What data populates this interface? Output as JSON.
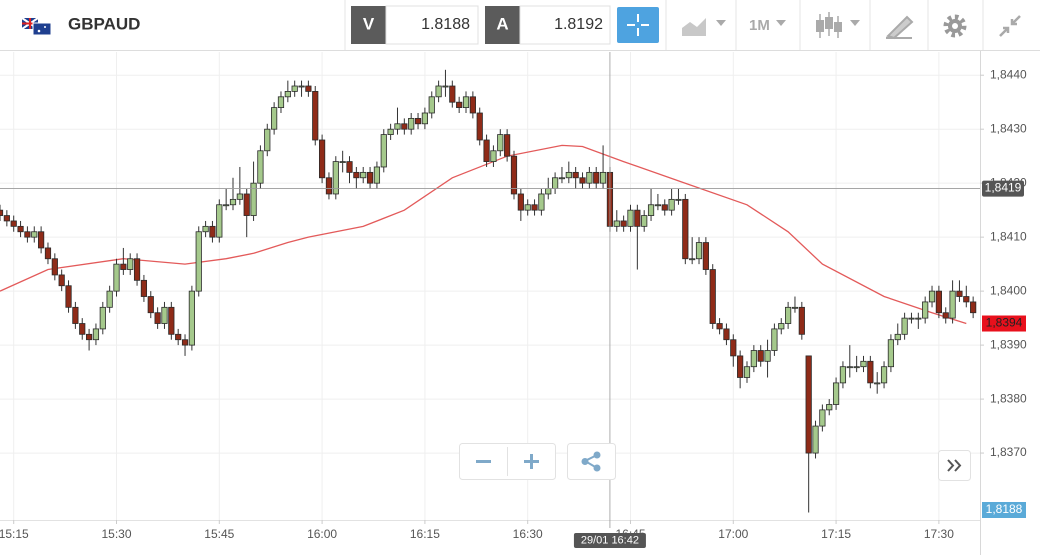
{
  "header": {
    "symbol": "GBPAUD",
    "bid_button": "V",
    "bid": "1.8188",
    "ask_button": "A",
    "ask": "1.8192",
    "timeframe": "1M"
  },
  "chart_data": {
    "type": "candlestick",
    "x": [
      "15:13",
      "15:14",
      "15:15",
      "15:16",
      "15:17",
      "15:18",
      "15:19",
      "15:20",
      "15:21",
      "15:22",
      "15:23",
      "15:24",
      "15:25",
      "15:26",
      "15:27",
      "15:28",
      "15:29",
      "15:30",
      "15:31",
      "15:32",
      "15:33",
      "15:34",
      "15:35",
      "15:36",
      "15:37",
      "15:38",
      "15:39",
      "15:40",
      "15:41",
      "15:42",
      "15:43",
      "15:44",
      "15:45",
      "15:46",
      "15:47",
      "15:48",
      "15:49",
      "15:50",
      "15:51",
      "15:52",
      "15:53",
      "15:54",
      "15:55",
      "15:56",
      "15:57",
      "15:58",
      "15:59",
      "16:00",
      "16:01",
      "16:02",
      "16:03",
      "16:04",
      "16:05",
      "16:06",
      "16:07",
      "16:08",
      "16:09",
      "16:10",
      "16:11",
      "16:12",
      "16:13",
      "16:14",
      "16:15",
      "16:16",
      "16:17",
      "16:18",
      "16:19",
      "16:20",
      "16:21",
      "16:22",
      "16:23",
      "16:24",
      "16:25",
      "16:26",
      "16:27",
      "16:28",
      "16:29",
      "16:30",
      "16:31",
      "16:32",
      "16:33",
      "16:34",
      "16:35",
      "16:36",
      "16:37",
      "16:38",
      "16:39",
      "16:40",
      "16:41",
      "16:42",
      "16:43",
      "16:44",
      "16:45",
      "16:46",
      "16:47",
      "16:48",
      "16:49",
      "16:50",
      "16:51",
      "16:52",
      "16:53",
      "16:54",
      "16:55",
      "16:56",
      "16:57",
      "16:58",
      "16:59",
      "17:00",
      "17:01",
      "17:02",
      "17:03",
      "17:04",
      "17:05",
      "17:06",
      "17:07",
      "17:08",
      "17:09",
      "17:10",
      "17:11",
      "17:12",
      "17:13",
      "17:14",
      "17:15",
      "17:16",
      "17:17",
      "17:18",
      "17:19",
      "17:20",
      "17:21",
      "17:22",
      "17:23",
      "17:24",
      "17:25",
      "17:26",
      "17:27",
      "17:28",
      "17:29",
      "17:30",
      "17:31",
      "17:32",
      "17:33",
      "17:34",
      "17:35"
    ],
    "open": [
      1.8415,
      1.8414,
      1.8413,
      1.8412,
      1.8411,
      1.841,
      1.8411,
      1.8408,
      1.8406,
      1.8403,
      1.8401,
      1.8397,
      1.8394,
      1.8392,
      1.8391,
      1.8393,
      1.8397,
      1.84,
      1.8405,
      1.8404,
      1.8406,
      1.8402,
      1.8399,
      1.8396,
      1.8394,
      1.8397,
      1.8392,
      1.8391,
      1.839,
      1.84,
      1.8411,
      1.8412,
      1.841,
      1.8416,
      1.8416,
      1.8417,
      1.8418,
      1.8414,
      1.842,
      1.8426,
      1.843,
      1.8434,
      1.8436,
      1.8437,
      1.8438,
      1.8438,
      1.8437,
      1.8428,
      1.8421,
      1.8418,
      1.8424,
      1.8424,
      1.8422,
      1.8421,
      1.8422,
      1.842,
      1.8423,
      1.8429,
      1.843,
      1.8431,
      1.843,
      1.8432,
      1.8431,
      1.8433,
      1.8436,
      1.8438,
      1.8438,
      1.8435,
      1.8434,
      1.8436,
      1.8433,
      1.8428,
      1.8424,
      1.8426,
      1.8429,
      1.8425,
      1.8418,
      1.8415,
      1.8416,
      1.8415,
      1.8418,
      1.8419,
      1.8421,
      1.8421,
      1.8422,
      1.8421,
      1.842,
      1.8422,
      1.842,
      1.8422,
      1.8412,
      1.8413,
      1.8412,
      1.8415,
      1.8412,
      1.8414,
      1.8416,
      1.8416,
      1.8415,
      1.8417,
      1.8417,
      1.8406,
      1.8406,
      1.8409,
      1.8404,
      1.8394,
      1.8393,
      1.8391,
      1.8388,
      1.8384,
      1.8386,
      1.8389,
      1.8387,
      1.8389,
      1.8393,
      1.8394,
      1.8397,
      1.8397,
      1.8388,
      1.837,
      1.8375,
      1.8378,
      1.8379,
      1.8383,
      1.8386,
      1.8386,
      1.8386,
      1.8387,
      1.8383,
      1.8383,
      1.8386,
      1.8391,
      1.8392,
      1.8395,
      1.8395,
      1.8395,
      1.8398,
      1.84,
      1.8396,
      1.8395,
      1.84,
      1.8399,
      1.8398
    ],
    "high": [
      1.8416,
      1.8415,
      1.8414,
      1.8413,
      1.8412,
      1.8412,
      1.8412,
      1.8409,
      1.8407,
      1.8404,
      1.8402,
      1.8398,
      1.8395,
      1.8393,
      1.8394,
      1.8398,
      1.8401,
      1.8406,
      1.8408,
      1.8407,
      1.8407,
      1.8403,
      1.84,
      1.8397,
      1.8398,
      1.8398,
      1.8393,
      1.8392,
      1.8401,
      1.8412,
      1.8413,
      1.8413,
      1.8417,
      1.8419,
      1.8421,
      1.8423,
      1.8419,
      1.8424,
      1.8427,
      1.8431,
      1.8435,
      1.8437,
      1.8439,
      1.8439,
      1.8439,
      1.8439,
      1.8438,
      1.8429,
      1.8422,
      1.8425,
      1.8426,
      1.8425,
      1.8423,
      1.8423,
      1.8423,
      1.8424,
      1.843,
      1.8431,
      1.8434,
      1.8432,
      1.8433,
      1.8433,
      1.8434,
      1.8437,
      1.8439,
      1.8441,
      1.8439,
      1.8436,
      1.8437,
      1.8437,
      1.8434,
      1.8429,
      1.8427,
      1.843,
      1.843,
      1.8426,
      1.8419,
      1.8417,
      1.8417,
      1.8419,
      1.8421,
      1.8422,
      1.8423,
      1.8424,
      1.8423,
      1.8422,
      1.8423,
      1.8423,
      1.8427,
      1.8423,
      1.8415,
      1.8414,
      1.8416,
      1.8416,
      1.8415,
      1.8419,
      1.8418,
      1.8417,
      1.8419,
      1.8419,
      1.8418,
      1.841,
      1.841,
      1.841,
      1.8405,
      1.8395,
      1.8394,
      1.8392,
      1.8389,
      1.8387,
      1.839,
      1.839,
      1.8391,
      1.8394,
      1.8395,
      1.8398,
      1.8399,
      1.8398,
      1.8388,
      1.8376,
      1.8379,
      1.838,
      1.8384,
      1.8387,
      1.839,
      1.8388,
      1.8388,
      1.8388,
      1.8385,
      1.8387,
      1.8392,
      1.8394,
      1.8396,
      1.8396,
      1.8396,
      1.8399,
      1.8401,
      1.8401,
      1.8397,
      1.8402,
      1.8402,
      1.8401,
      1.8399
    ],
    "low": [
      1.8413,
      1.8412,
      1.8411,
      1.841,
      1.8409,
      1.8409,
      1.8407,
      1.8405,
      1.8402,
      1.84,
      1.8396,
      1.8393,
      1.8391,
      1.8389,
      1.839,
      1.8392,
      1.8396,
      1.8399,
      1.8403,
      1.8403,
      1.8401,
      1.8398,
      1.8395,
      1.8393,
      1.8393,
      1.8391,
      1.839,
      1.8388,
      1.8389,
      1.8399,
      1.841,
      1.8409,
      1.8409,
      1.8415,
      1.8415,
      1.8416,
      1.841,
      1.8413,
      1.8419,
      1.8425,
      1.8429,
      1.8433,
      1.8435,
      1.8436,
      1.8436,
      1.8436,
      1.8427,
      1.842,
      1.8417,
      1.8417,
      1.8422,
      1.842,
      1.8419,
      1.842,
      1.8419,
      1.8419,
      1.8422,
      1.8428,
      1.8429,
      1.8429,
      1.8429,
      1.843,
      1.843,
      1.8432,
      1.8435,
      1.8436,
      1.8434,
      1.8433,
      1.8433,
      1.8432,
      1.8427,
      1.8423,
      1.8423,
      1.8425,
      1.8424,
      1.8417,
      1.8413,
      1.8414,
      1.8414,
      1.8414,
      1.8417,
      1.8418,
      1.842,
      1.842,
      1.8419,
      1.8419,
      1.8419,
      1.8419,
      1.8419,
      1.8411,
      1.8411,
      1.8411,
      1.8411,
      1.8404,
      1.8411,
      1.8413,
      1.8415,
      1.8414,
      1.8414,
      1.8416,
      1.8405,
      1.8405,
      1.8405,
      1.8403,
      1.8393,
      1.8392,
      1.839,
      1.8386,
      1.8382,
      1.8383,
      1.8385,
      1.8386,
      1.8384,
      1.8388,
      1.8392,
      1.8393,
      1.8396,
      1.8391,
      1.8359,
      1.8369,
      1.8374,
      1.8377,
      1.8378,
      1.8382,
      1.8384,
      1.8385,
      1.8385,
      1.8382,
      1.8381,
      1.8382,
      1.8385,
      1.839,
      1.8391,
      1.8394,
      1.8393,
      1.8394,
      1.8397,
      1.8395,
      1.8394,
      1.8394,
      1.8398,
      1.8397,
      1.8395
    ],
    "close": [
      1.8414,
      1.8413,
      1.8412,
      1.8411,
      1.841,
      1.8411,
      1.8408,
      1.8406,
      1.8403,
      1.8401,
      1.8397,
      1.8394,
      1.8392,
      1.8391,
      1.8393,
      1.8397,
      1.84,
      1.8405,
      1.8404,
      1.8406,
      1.8402,
      1.8399,
      1.8396,
      1.8394,
      1.8397,
      1.8392,
      1.8391,
      1.839,
      1.84,
      1.8411,
      1.8412,
      1.841,
      1.8416,
      1.8416,
      1.8417,
      1.8418,
      1.8414,
      1.842,
      1.8426,
      1.843,
      1.8434,
      1.8436,
      1.8437,
      1.8438,
      1.8438,
      1.8437,
      1.8428,
      1.8421,
      1.8418,
      1.8424,
      1.8424,
      1.8422,
      1.8421,
      1.8422,
      1.842,
      1.8423,
      1.8429,
      1.843,
      1.8431,
      1.843,
      1.8432,
      1.8431,
      1.8433,
      1.8436,
      1.8438,
      1.8438,
      1.8435,
      1.8434,
      1.8436,
      1.8433,
      1.8428,
      1.8424,
      1.8426,
      1.8429,
      1.8425,
      1.8418,
      1.8415,
      1.8416,
      1.8415,
      1.8418,
      1.8419,
      1.8421,
      1.8421,
      1.8422,
      1.8421,
      1.842,
      1.8422,
      1.842,
      1.8422,
      1.8412,
      1.8413,
      1.8412,
      1.8415,
      1.8412,
      1.8414,
      1.8416,
      1.8416,
      1.8415,
      1.8417,
      1.8417,
      1.8406,
      1.8406,
      1.8409,
      1.8404,
      1.8394,
      1.8393,
      1.8391,
      1.8388,
      1.8384,
      1.8386,
      1.8389,
      1.8387,
      1.8389,
      1.8393,
      1.8394,
      1.8397,
      1.8397,
      1.8392,
      1.837,
      1.8375,
      1.8378,
      1.8379,
      1.8383,
      1.8386,
      1.8386,
      1.8386,
      1.8387,
      1.8383,
      1.8383,
      1.8386,
      1.8391,
      1.8392,
      1.8395,
      1.8395,
      1.8395,
      1.8398,
      1.84,
      1.8396,
      1.8395,
      1.84,
      1.8399,
      1.8398,
      1.8396
    ],
    "up_color": "#a5c98c",
    "down_color": "#8f2b18",
    "ma": {
      "x": [
        "15:13",
        "15:20",
        "15:31",
        "15:40",
        "15:46",
        "15:50",
        "15:55",
        "15:58",
        "16:06",
        "16:12",
        "16:19",
        "16:27",
        "16:35",
        "16:38",
        "16:44",
        "16:53",
        "17:02",
        "17:08",
        "17:13",
        "17:22",
        "17:29",
        "17:34"
      ],
      "values": [
        1.84,
        1.8404,
        1.8406,
        1.8405,
        1.8406,
        1.8407,
        1.8409,
        1.841,
        1.8412,
        1.8415,
        1.8421,
        1.8425,
        1.8427,
        1.84268,
        1.8424,
        1.842,
        1.8416,
        1.8411,
        1.8405,
        1.8399,
        1.8396,
        1.8394
      ],
      "color": "#e35a5a"
    },
    "xlim": [
      "15:13",
      "17:36"
    ],
    "xticks": [
      "15:15",
      "15:30",
      "15:45",
      "16:00",
      "16:15",
      "16:30",
      "16:45",
      "17:00",
      "17:15",
      "17:30"
    ],
    "ylim": [
      1.83576,
      1.84443
    ],
    "yticks": [
      {
        "value": 1.837,
        "label": "1,8370"
      },
      {
        "value": 1.838,
        "label": "1,8380"
      },
      {
        "value": 1.839,
        "label": "1,8390"
      },
      {
        "value": 1.84,
        "label": "1,8400"
      },
      {
        "value": 1.841,
        "label": "1,8410"
      },
      {
        "value": 1.842,
        "label": "1,8420"
      },
      {
        "value": 1.843,
        "label": "1,8430"
      },
      {
        "value": 1.844,
        "label": "1,8440"
      }
    ],
    "grid": true,
    "last_price": {
      "value": 1.8394,
      "label": "1,8394",
      "color": "#e8101c"
    },
    "crosshair": {
      "x": "16:42",
      "y": {
        "value": 1.8419,
        "label": "1,8419"
      },
      "label": "29/01 16:42"
    },
    "bid_tag": {
      "label": "1,8188",
      "color": "#5aaad8"
    }
  }
}
